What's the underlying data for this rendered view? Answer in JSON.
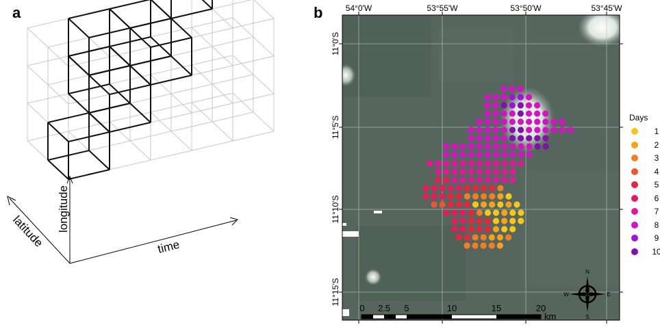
{
  "panel_a": {
    "label": "a",
    "axis_time": "time",
    "axis_longitude": "longitude",
    "axis_latitude": "latitude"
  },
  "panel_b": {
    "label": "b",
    "lon_ticks": [
      "54°0'W",
      "53°55'W",
      "53°50'W",
      "53°45'W"
    ],
    "lat_ticks": [
      "11°0'S",
      "11°5'S",
      "11°10'S",
      "11°15'S"
    ],
    "legend_title": "Days",
    "legend": [
      {
        "label": "1",
        "color": "#f7c71b"
      },
      {
        "label": "2",
        "color": "#f5a31d"
      },
      {
        "label": "3",
        "color": "#f07f23"
      },
      {
        "label": "4",
        "color": "#ec5634"
      },
      {
        "label": "5",
        "color": "#e9243f"
      },
      {
        "label": "6",
        "color": "#e61b5f"
      },
      {
        "label": "7",
        "color": "#e0199a"
      },
      {
        "label": "8",
        "color": "#cf16c0"
      },
      {
        "label": "9",
        "color": "#a312d7"
      },
      {
        "label": "10",
        "color": "#7e13a7"
      }
    ],
    "scalebar": {
      "ticks": [
        "0",
        "2.5",
        "5",
        "10",
        "15",
        "20"
      ],
      "unit": "km"
    },
    "compass": {
      "n": "N",
      "s": "S",
      "e": "E",
      "w": "W"
    }
  }
}
